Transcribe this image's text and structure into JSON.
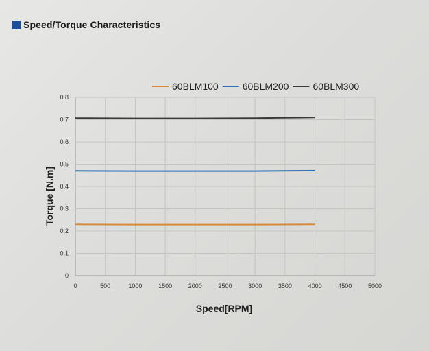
{
  "heading": {
    "text": "Speed/Torque Characteristics",
    "marker_color": "#1f4e99"
  },
  "chart_data": {
    "type": "line",
    "title": "Speed/Torque Characteristics",
    "xlabel": "Speed[RPM]",
    "ylabel": "Torque [N.m]",
    "xlim": [
      0,
      5000
    ],
    "ylim": [
      0,
      0.8
    ],
    "xticks": [
      0,
      500,
      1000,
      1500,
      2000,
      2500,
      3000,
      3500,
      4000,
      4500,
      5000
    ],
    "yticks": [
      0,
      0.1,
      0.2,
      0.3,
      0.4,
      0.5,
      0.6,
      0.7,
      0.8
    ],
    "ytick_labels": [
      "0",
      "0.1",
      "0.2",
      "0.3",
      "0.4",
      "0.5",
      "0.6",
      "0.7",
      "0.8"
    ],
    "grid": true,
    "legend_position": "top",
    "series": [
      {
        "name": "60BLM100",
        "color": "#d9893a",
        "x": [
          0,
          1000,
          2000,
          3000,
          4000
        ],
        "y": [
          0.23,
          0.229,
          0.229,
          0.229,
          0.23
        ]
      },
      {
        "name": "60BLM200",
        "color": "#2f72b8",
        "x": [
          0,
          1000,
          2000,
          3000,
          4000
        ],
        "y": [
          0.47,
          0.469,
          0.469,
          0.469,
          0.471
        ]
      },
      {
        "name": "60BLM300",
        "color": "#3a3a3a",
        "x": [
          0,
          1000,
          2000,
          3000,
          4000
        ],
        "y": [
          0.707,
          0.706,
          0.706,
          0.707,
          0.71
        ]
      }
    ]
  }
}
